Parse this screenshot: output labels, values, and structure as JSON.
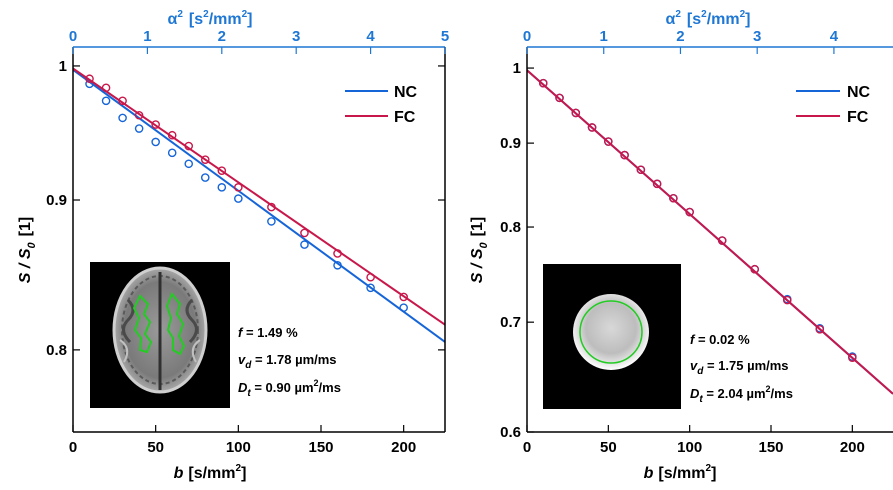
{
  "colors": {
    "nc": "#1565d8",
    "fc": "#c8174a",
    "top_axis": "#1f77d4"
  },
  "chart_data": [
    {
      "type": "scatter",
      "xlabel_b": "b",
      "xlabel_unit": "[s/mm",
      "ylabel_prefix": "S / S",
      "ylabel_unit": "[1]",
      "x2label_sym": "α",
      "x2label_unit": "[s",
      "x2label_unit2": "/mm",
      "xlim": [
        0,
        225
      ],
      "ylim": [
        0.75,
        1.015
      ],
      "yscale": "log",
      "x2lim": [
        0,
        5
      ],
      "xticks": [
        0,
        50,
        100,
        150,
        200
      ],
      "yticks": [
        0.8,
        0.9,
        1
      ],
      "yticklabels": [
        "0.8",
        "0.9",
        "1"
      ],
      "x2ticks": [
        0,
        1,
        2,
        3,
        4,
        5
      ],
      "legend": {
        "position": "top-right",
        "entries": [
          "NC",
          "FC"
        ]
      },
      "series": [
        {
          "name": "NC",
          "x": [
            10,
            20,
            30,
            40,
            50,
            60,
            70,
            80,
            90,
            100,
            120,
            140,
            160,
            180,
            200
          ],
          "y": [
            0.986,
            0.973,
            0.96,
            0.952,
            0.942,
            0.934,
            0.926,
            0.916,
            0.909,
            0.901,
            0.885,
            0.869,
            0.855,
            0.84,
            0.827
          ],
          "fit_x": [
            0,
            225
          ],
          "fit_y": [
            0.997,
            0.805
          ]
        },
        {
          "name": "FC",
          "x": [
            10,
            20,
            30,
            40,
            50,
            60,
            70,
            80,
            90,
            100,
            120,
            140,
            160,
            180,
            200
          ],
          "y": [
            0.99,
            0.983,
            0.973,
            0.962,
            0.955,
            0.947,
            0.939,
            0.929,
            0.921,
            0.909,
            0.895,
            0.877,
            0.863,
            0.847,
            0.834
          ],
          "fit_x": [
            0,
            225
          ],
          "fit_y": [
            0.998,
            0.816
          ]
        }
      ],
      "annotations": {
        "f_sym": "f",
        "f_val": " = 1.49 %",
        "vd_sym": "v",
        "vd_sub": "d",
        "vd_val": " = 1.78 µm/ms",
        "dt_sym": "D",
        "dt_sub": "t",
        "dt_val": " = 0.90 µm",
        "dt_unit": "/ms"
      },
      "inset": "brain-image"
    },
    {
      "type": "scatter",
      "xlabel_b": "b",
      "xlabel_unit": "[s/mm",
      "ylabel_prefix": "S / S",
      "ylabel_unit": "[1]",
      "x2label_sym": "α",
      "x2label_unit": "[s",
      "x2label_unit2": "/mm",
      "xlim": [
        0,
        225
      ],
      "ylim": [
        0.6,
        1.03
      ],
      "yscale": "log",
      "x2lim": [
        0,
        4.77
      ],
      "xticks": [
        0,
        50,
        100,
        150,
        200
      ],
      "yticks": [
        0.6,
        0.7,
        0.8,
        0.9,
        1
      ],
      "yticklabels": [
        "0.6",
        "0.7",
        "0.8",
        "0.9",
        "1"
      ],
      "x2ticks": [
        0,
        1,
        2,
        3,
        4
      ],
      "legend": {
        "position": "top-right",
        "entries": [
          "NC",
          "FC"
        ]
      },
      "series": [
        {
          "name": "NC",
          "x": [
            10,
            20,
            30,
            40,
            50,
            60,
            70,
            80,
            90,
            100,
            120,
            140,
            160,
            180,
            200
          ],
          "y": [
            0.979,
            0.959,
            0.939,
            0.92,
            0.902,
            0.885,
            0.867,
            0.85,
            0.833,
            0.817,
            0.785,
            0.754,
            0.723,
            0.694,
            0.667
          ],
          "fit_x": [
            0,
            225
          ],
          "fit_y": [
            0.997,
            0.633
          ]
        },
        {
          "name": "FC",
          "x": [
            10,
            20,
            30,
            40,
            50,
            60,
            70,
            80,
            90,
            100,
            120,
            140,
            160,
            180,
            200
          ],
          "y": [
            0.979,
            0.959,
            0.939,
            0.92,
            0.902,
            0.885,
            0.867,
            0.85,
            0.833,
            0.817,
            0.785,
            0.754,
            0.722,
            0.693,
            0.666
          ],
          "fit_x": [
            0,
            225
          ],
          "fit_y": [
            0.997,
            0.633
          ]
        }
      ],
      "annotations": {
        "f_sym": "f",
        "f_val": " = 0.02 %",
        "vd_sym": "v",
        "vd_sub": "d",
        "vd_val": " = 1.75 µm/ms",
        "dt_sym": "D",
        "dt_sub": "t",
        "dt_val": " = 2.04 µm",
        "dt_unit": "/ms"
      },
      "inset": "phantom-image"
    }
  ]
}
